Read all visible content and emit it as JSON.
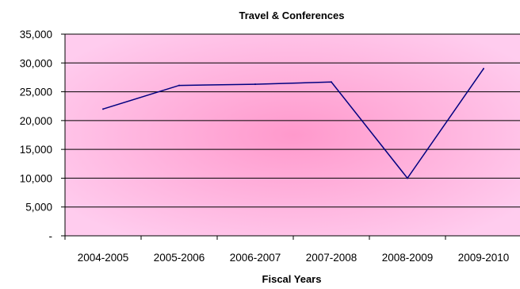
{
  "chart_data": {
    "type": "line",
    "title": "Travel & Conferences",
    "xlabel": "Fiscal Years",
    "ylabel": "",
    "categories": [
      "2004-2005",
      "2005-2006",
      "2006-2007",
      "2007-2008",
      "2008-2009",
      "2009-2010"
    ],
    "series": [
      {
        "values": [
          22000,
          26100,
          26300,
          26700,
          10000,
          29000
        ],
        "color": "#000080"
      }
    ],
    "ylim": [
      0,
      35000
    ],
    "yticks": [
      0,
      5000,
      10000,
      15000,
      20000,
      25000,
      30000,
      35000
    ],
    "ytick_labels": [
      "-",
      "5,000",
      "10,000",
      "15,000",
      "20,000",
      "25,000",
      "30,000",
      "35,000"
    ],
    "grid": true,
    "legend": "none",
    "plot_background": {
      "center": "#ff99cc",
      "edge": "#ffccee"
    }
  }
}
